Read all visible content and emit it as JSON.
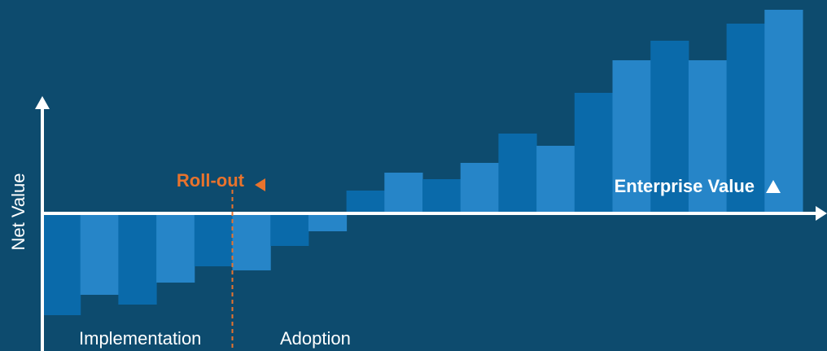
{
  "chart_data": {
    "type": "bar",
    "ylabel": "Net Value",
    "xlabel": "",
    "values": [
      -1.25,
      -1.0,
      -1.12,
      -0.85,
      -0.65,
      -0.7,
      -0.4,
      -0.22,
      0.28,
      0.5,
      0.42,
      0.62,
      0.98,
      0.83,
      1.48,
      1.88,
      2.12,
      1.88,
      2.33,
      2.5
    ],
    "ylim": [
      -1.7,
      3.0
    ],
    "rollout_index": 5,
    "annotations": {
      "rollout": "Roll-out",
      "enterprise_value": "Enterprise Value",
      "phase_left": "Implementation",
      "phase_right": "Adoption"
    },
    "colors": {
      "background": "#0d4b6e",
      "bar_dark": "#0a6aaa",
      "bar_light": "#2685c8",
      "rollout": "#e8732d",
      "axis": "#ffffff"
    },
    "icons": {
      "rollout_marker": "triangle-left-icon",
      "enterprise_marker": "triangle-up-icon",
      "axis_arrows": "arrow-head-icon"
    }
  }
}
